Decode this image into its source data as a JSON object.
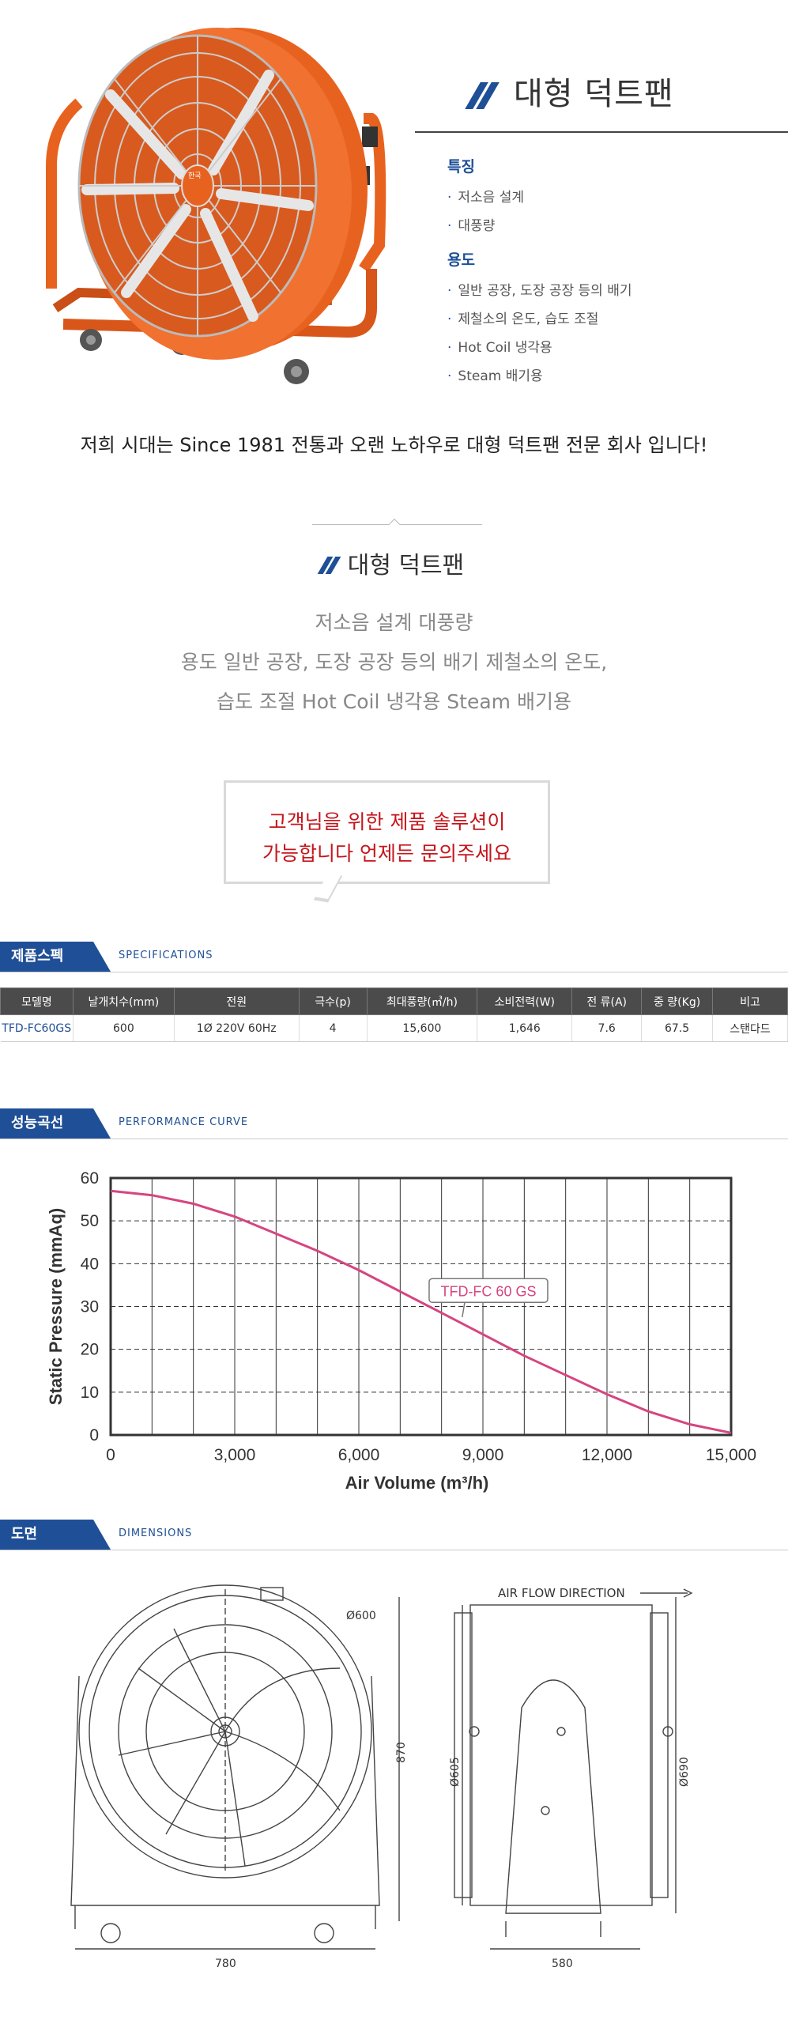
{
  "title": "대형 덕트팬",
  "features": {
    "heading": "특징",
    "items": [
      "저소음 설계",
      "대풍량"
    ]
  },
  "uses": {
    "heading": "용도",
    "items": [
      "일반 공장, 도장 공장 등의 배기",
      "제철소의 온도, 습도 조절",
      "Hot Coil 냉각용",
      "Steam 배기용"
    ]
  },
  "fan_label": "한국",
  "intro": "저희 시대는  Since 1981 전통과 오랜 노하우로  대형 덕트팬 전문 회사 입니다!",
  "summary": {
    "title": "대형 덕트팬",
    "lines": [
      "저소음 설계 대풍량",
      "용도 일반 공장, 도장 공장 등의 배기 제철소의 온도,",
      "습도 조절 Hot Coil 냉각용 Steam 배기용"
    ]
  },
  "bubble": {
    "line1": "고객님을 위한 제품 솔루션이",
    "line2": "가능합니다 언제든 문의주세요"
  },
  "specs_section": {
    "tag": "제품스펙",
    "en": "SPECIFICATIONS"
  },
  "spec_table": {
    "headers": [
      "모델명",
      "날개치수(mm)",
      "전원",
      "극수(p)",
      "최대풍량(㎥/h)",
      "소비전력(W)",
      "전 류(A)",
      "중 량(Kg)",
      "비고"
    ],
    "rows": [
      [
        "TFD-FC60GS",
        "600",
        "1Ø 220V 60Hz",
        "4",
        "15,600",
        "1,646",
        "7.6",
        "67.5",
        "스탠다드"
      ]
    ]
  },
  "curve_section": {
    "tag": "성능곡선",
    "en": "PERFORMANCE CURVE"
  },
  "chart_data": {
    "type": "line",
    "xlabel": "Air Volume (m³/h)",
    "ylabel": "Static Pressure (mmAq)",
    "xlim": [
      0,
      15000
    ],
    "ylim": [
      0,
      60
    ],
    "xticks": [
      "0",
      "3,000",
      "6,000",
      "9,000",
      "12,000",
      "15,000"
    ],
    "yticks": [
      "0",
      "10",
      "20",
      "30",
      "40",
      "50",
      "60"
    ],
    "grid": true,
    "series": [
      {
        "name": "TFD-FC 60 GS",
        "color": "#d6457f",
        "x": [
          0,
          1000,
          2000,
          3000,
          4000,
          5000,
          6000,
          7000,
          8000,
          9000,
          10000,
          11000,
          12000,
          13000,
          14000,
          15000
        ],
        "y": [
          57,
          56,
          54,
          51,
          47,
          43,
          38.5,
          33.5,
          28.5,
          23.5,
          18.5,
          14,
          9.5,
          5.5,
          2.5,
          0.5
        ]
      }
    ]
  },
  "dims_section": {
    "tag": "도면",
    "en": "DIMENSIONS"
  },
  "drawing": {
    "airflow": "AIR FLOW DIRECTION",
    "dia_600": "Ø600",
    "h_870": "870",
    "w_780": "780",
    "dia_605": "Ø605",
    "dia_690": "Ø690",
    "w_580": "580"
  },
  "colors": {
    "accent": "#1f4f96",
    "fan_orange": "#e8621f",
    "curve": "#d6457f",
    "bubble_text": "#c4161c"
  }
}
